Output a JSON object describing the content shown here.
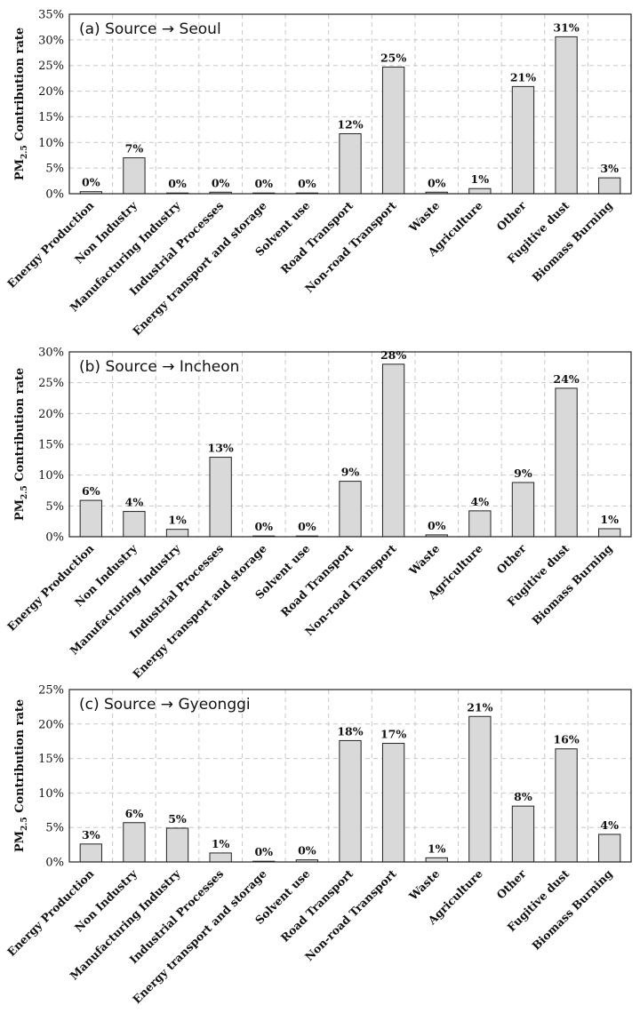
{
  "colors": {
    "bar_fill": "#d9d9d9",
    "bar_stroke": "#222222",
    "grid": "#c8c8c8",
    "frame": "#222222"
  },
  "chart_data": [
    {
      "type": "bar",
      "title": "(a) Source → Seoul",
      "ylabel": "PM2.5 Contribution rate",
      "ylabel_main": "PM",
      "ylabel_sub": "2.5",
      "ylabel_rest": " Contribution rate",
      "ylim": [
        0,
        35
      ],
      "yticks": [
        "0%",
        "5%",
        "10%",
        "15%",
        "20%",
        "25%",
        "30%",
        "35%"
      ],
      "grid": true,
      "categories": [
        "Energy Production",
        "Non Industry",
        "Manufacturing Industry",
        "Industrial Processes",
        "Energy transport and storage",
        "Solvent use",
        "Road Transport",
        "Non-road Transport",
        "Waste",
        "Agriculture",
        "Other",
        "Fugitive dust",
        "Biomass Burning"
      ],
      "values": [
        0.4,
        7.0,
        0.0,
        0.3,
        0.1,
        0.1,
        11.7,
        24.7,
        0.3,
        1.0,
        20.9,
        30.6,
        3.1
      ],
      "data_labels": [
        "0%",
        "7%",
        "0%",
        "0%",
        "0%",
        "0%",
        "12%",
        "25%",
        "0%",
        "1%",
        "21%",
        "31%",
        "3%"
      ]
    },
    {
      "type": "bar",
      "title": "(b) Source → Incheon",
      "ylabel": "PM2.5 Contribution rate",
      "ylabel_main": "PM",
      "ylabel_sub": "2.5",
      "ylabel_rest": " Contribution rate",
      "ylim": [
        0,
        30
      ],
      "yticks": [
        "0%",
        "5%",
        "10%",
        "15%",
        "20%",
        "25%",
        "30%"
      ],
      "grid": true,
      "categories": [
        "Energy Production",
        "Non Industry",
        "Manufacturing Industry",
        "Industrial Processes",
        "Energy transport and storage",
        "Solvent use",
        "Road Transport",
        "Non-road Transport",
        "Waste",
        "Agriculture",
        "Other",
        "Fugitive dust",
        "Biomass Burning"
      ],
      "values": [
        5.9,
        4.1,
        1.2,
        12.9,
        0.1,
        0.1,
        9.0,
        28.0,
        0.3,
        4.2,
        8.8,
        24.1,
        1.3
      ],
      "data_labels": [
        "6%",
        "4%",
        "1%",
        "13%",
        "0%",
        "0%",
        "9%",
        "28%",
        "0%",
        "4%",
        "9%",
        "24%",
        "1%"
      ]
    },
    {
      "type": "bar",
      "title": "(c) Source → Gyeonggi",
      "ylabel": "PM2.5 Contribution rate",
      "ylabel_main": "PM",
      "ylabel_sub": "2.5",
      "ylabel_rest": " Contribution rate",
      "ylim": [
        0,
        25
      ],
      "yticks": [
        "0%",
        "5%",
        "10%",
        "15%",
        "20%",
        "25%"
      ],
      "grid": true,
      "categories": [
        "Energy Production",
        "Non Industry",
        "Manufacturing Industry",
        "Industrial Processes",
        "Energy transport and storage",
        "Solvent use",
        "Road Transport",
        "Non-road Transport",
        "Waste",
        "Agriculture",
        "Other",
        "Fugitive dust",
        "Biomass Burning"
      ],
      "values": [
        2.6,
        5.7,
        4.9,
        1.3,
        0.0,
        0.3,
        17.6,
        17.2,
        0.6,
        21.1,
        8.1,
        16.4,
        4.0
      ],
      "data_labels": [
        "3%",
        "6%",
        "5%",
        "1%",
        "0%",
        "0%",
        "18%",
        "17%",
        "1%",
        "21%",
        "8%",
        "16%",
        "4%"
      ]
    }
  ]
}
